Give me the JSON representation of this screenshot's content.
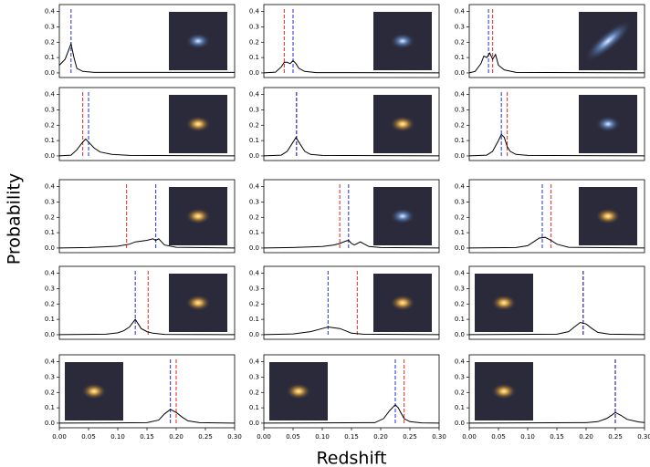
{
  "axis_labels": {
    "x": "Redshift",
    "y": "Probability"
  },
  "chart_data": [
    {
      "type": "line",
      "color": "#000000",
      "x": [
        0,
        0.01,
        0.015,
        0.02,
        0.025,
        0.03,
        0.04,
        0.06,
        0.3
      ],
      "values": [
        0.05,
        0.09,
        0.14,
        0.19,
        0.1,
        0.03,
        0.01,
        0.003,
        0.003
      ],
      "markers": [
        {
          "color": "#2633d9",
          "value": 0.02
        }
      ],
      "xlim": [
        0,
        0.3
      ],
      "ylim": [
        -0.03,
        0.445
      ],
      "yticks": [
        {
          "value": 0,
          "label": "0.0"
        },
        0.1,
        0.2,
        0.3,
        0.4
      ]
    },
    {
      "type": "line",
      "color": "#000000",
      "x": [
        0,
        0.02,
        0.03,
        0.035,
        0.04,
        0.045,
        0.05,
        0.055,
        0.06,
        0.07,
        0.09,
        0.3
      ],
      "values": [
        0,
        0.005,
        0.04,
        0.07,
        0.07,
        0.06,
        0.08,
        0.06,
        0.03,
        0.01,
        0.002,
        0
      ],
      "markers": [
        {
          "color": "#e8262a",
          "value": 0.035
        },
        {
          "color": "#2633d9",
          "value": 0.05
        }
      ],
      "xlim": [
        0,
        0.3
      ],
      "ylim": [
        -0.03,
        0.445
      ],
      "yticks": [
        {
          "value": 0,
          "label": "0.0"
        },
        0.1,
        0.2,
        0.3,
        0.4
      ]
    },
    {
      "type": "line",
      "color": "#000000",
      "x": [
        0,
        0.01,
        0.02,
        0.025,
        0.03,
        0.035,
        0.04,
        0.045,
        0.05,
        0.06,
        0.08,
        0.3
      ],
      "values": [
        0,
        0.01,
        0.06,
        0.11,
        0.1,
        0.13,
        0.09,
        0.12,
        0.05,
        0.02,
        0.003,
        0
      ],
      "markers": [
        {
          "color": "#2633d9",
          "value": 0.033
        },
        {
          "color": "#e8262a",
          "value": 0.04
        }
      ],
      "xlim": [
        0,
        0.3
      ],
      "ylim": [
        -0.03,
        0.445
      ],
      "yticks": [
        {
          "value": 0,
          "label": "0.0"
        },
        0.1,
        0.2,
        0.3,
        0.4
      ]
    },
    {
      "type": "line",
      "color": "#000000",
      "x": [
        0,
        0.02,
        0.03,
        0.04,
        0.045,
        0.05,
        0.06,
        0.07,
        0.09,
        0.12,
        0.3
      ],
      "values": [
        0,
        0.005,
        0.04,
        0.09,
        0.11,
        0.09,
        0.05,
        0.025,
        0.01,
        0.003,
        0
      ],
      "markers": [
        {
          "color": "#e8262a",
          "value": 0.04
        },
        {
          "color": "#2633d9",
          "value": 0.05
        }
      ],
      "xlim": [
        0,
        0.3
      ],
      "ylim": [
        -0.03,
        0.445
      ],
      "yticks": [
        {
          "value": 0,
          "label": "0.0"
        },
        0.1,
        0.2,
        0.3,
        0.4
      ]
    },
    {
      "type": "line",
      "color": "#000000",
      "x": [
        0,
        0.03,
        0.04,
        0.05,
        0.055,
        0.06,
        0.07,
        0.08,
        0.1,
        0.3
      ],
      "values": [
        0,
        0.005,
        0.03,
        0.09,
        0.12,
        0.09,
        0.03,
        0.01,
        0.003,
        0
      ],
      "markers": [
        {
          "color": "#e8262a",
          "value": 0.056
        },
        {
          "color": "#2633d9",
          "value": 0.056
        }
      ],
      "xlim": [
        0,
        0.3
      ],
      "ylim": [
        -0.03,
        0.445
      ],
      "yticks": [
        {
          "value": 0,
          "label": "0.0"
        },
        0.1,
        0.2,
        0.3,
        0.4
      ]
    },
    {
      "type": "line",
      "color": "#000000",
      "x": [
        0,
        0.03,
        0.04,
        0.05,
        0.055,
        0.06,
        0.065,
        0.07,
        0.08,
        0.1,
        0.3
      ],
      "values": [
        0,
        0.005,
        0.03,
        0.1,
        0.14,
        0.12,
        0.06,
        0.03,
        0.01,
        0.003,
        0
      ],
      "markers": [
        {
          "color": "#2633d9",
          "value": 0.055
        },
        {
          "color": "#e8262a",
          "value": 0.065
        }
      ],
      "xlim": [
        0,
        0.3
      ],
      "ylim": [
        -0.03,
        0.445
      ],
      "yticks": [
        {
          "value": 0,
          "label": "0.0"
        },
        0.1,
        0.2,
        0.3,
        0.4
      ]
    },
    {
      "type": "line",
      "color": "#000000",
      "x": [
        0,
        0.05,
        0.1,
        0.12,
        0.13,
        0.14,
        0.15,
        0.16,
        0.165,
        0.17,
        0.175,
        0.18,
        0.2,
        0.3
      ],
      "values": [
        0,
        0.003,
        0.012,
        0.025,
        0.04,
        0.045,
        0.05,
        0.06,
        0.05,
        0.06,
        0.04,
        0.02,
        0.005,
        0
      ],
      "markers": [
        {
          "color": "#e8262a",
          "value": 0.115
        },
        {
          "color": "#2633d9",
          "value": 0.165
        }
      ],
      "xlim": [
        0,
        0.3
      ],
      "ylim": [
        -0.03,
        0.445
      ],
      "yticks": [
        {
          "value": 0,
          "label": "0.0"
        },
        0.1,
        0.2,
        0.3,
        0.4
      ]
    },
    {
      "type": "line",
      "color": "#000000",
      "x": [
        0,
        0.05,
        0.1,
        0.12,
        0.13,
        0.14,
        0.145,
        0.15,
        0.155,
        0.16,
        0.165,
        0.17,
        0.18,
        0.2,
        0.3
      ],
      "values": [
        0,
        0.003,
        0.01,
        0.02,
        0.03,
        0.045,
        0.05,
        0.03,
        0.02,
        0.03,
        0.04,
        0.03,
        0.01,
        0.003,
        0
      ],
      "markers": [
        {
          "color": "#e8262a",
          "value": 0.13
        },
        {
          "color": "#2633d9",
          "value": 0.145
        }
      ],
      "xlim": [
        0,
        0.3
      ],
      "ylim": [
        -0.03,
        0.445
      ],
      "yticks": [
        {
          "value": 0,
          "label": "0.0"
        },
        0.1,
        0.2,
        0.3,
        0.4
      ]
    },
    {
      "type": "line",
      "color": "#000000",
      "x": [
        0,
        0.08,
        0.1,
        0.11,
        0.12,
        0.13,
        0.14,
        0.15,
        0.17,
        0.3
      ],
      "values": [
        0,
        0.003,
        0.015,
        0.04,
        0.065,
        0.07,
        0.05,
        0.025,
        0.005,
        0
      ],
      "markers": [
        {
          "color": "#2633d9",
          "value": 0.125
        },
        {
          "color": "#e8262a",
          "value": 0.14
        }
      ],
      "xlim": [
        0,
        0.3
      ],
      "ylim": [
        -0.03,
        0.445
      ],
      "yticks": [
        {
          "value": 0,
          "label": "0.0"
        },
        0.1,
        0.2,
        0.3,
        0.4
      ]
    },
    {
      "type": "line",
      "color": "#000000",
      "x": [
        0,
        0.08,
        0.1,
        0.11,
        0.12,
        0.13,
        0.135,
        0.14,
        0.15,
        0.16,
        0.18,
        0.3
      ],
      "values": [
        0,
        0.003,
        0.012,
        0.025,
        0.05,
        0.1,
        0.07,
        0.04,
        0.02,
        0.01,
        0.002,
        0
      ],
      "markers": [
        {
          "color": "#2633d9",
          "value": 0.13
        },
        {
          "color": "#e8262a",
          "value": 0.152
        }
      ],
      "xlim": [
        0,
        0.3
      ],
      "ylim": [
        -0.03,
        0.445
      ],
      "yticks": [
        {
          "value": 0,
          "label": "0.0"
        },
        0.1,
        0.2,
        0.3,
        0.4
      ]
    },
    {
      "type": "line",
      "color": "#000000",
      "x": [
        0,
        0.05,
        0.08,
        0.1,
        0.11,
        0.12,
        0.13,
        0.14,
        0.15,
        0.17,
        0.3
      ],
      "values": [
        0,
        0.005,
        0.02,
        0.04,
        0.05,
        0.045,
        0.04,
        0.025,
        0.01,
        0.003,
        0
      ],
      "markers": [
        {
          "color": "#2633d9",
          "value": 0.11
        },
        {
          "color": "#e8262a",
          "value": 0.16
        }
      ],
      "xlim": [
        0,
        0.3
      ],
      "ylim": [
        -0.03,
        0.445
      ],
      "yticks": [
        {
          "value": 0,
          "label": "0.0"
        },
        0.1,
        0.2,
        0.3,
        0.4
      ]
    },
    {
      "type": "line",
      "color": "#000000",
      "x": [
        0,
        0.15,
        0.17,
        0.18,
        0.19,
        0.2,
        0.21,
        0.22,
        0.24,
        0.3
      ],
      "values": [
        0,
        0.003,
        0.02,
        0.05,
        0.08,
        0.07,
        0.04,
        0.015,
        0.003,
        0
      ],
      "markers": [
        {
          "color": "#e8262a",
          "value": 0.195
        },
        {
          "color": "#2633d9",
          "value": 0.195
        }
      ],
      "xlim": [
        0,
        0.3
      ],
      "ylim": [
        -0.03,
        0.445
      ],
      "yticks": [
        {
          "value": 0,
          "label": "0.0"
        },
        0.1,
        0.2,
        0.3,
        0.4
      ]
    },
    {
      "type": "line",
      "color": "#000000",
      "x": [
        0,
        0.15,
        0.17,
        0.18,
        0.19,
        0.2,
        0.21,
        0.22,
        0.24,
        0.3
      ],
      "values": [
        0,
        0.003,
        0.02,
        0.06,
        0.09,
        0.07,
        0.04,
        0.015,
        0.003,
        0
      ],
      "markers": [
        {
          "color": "#2633d9",
          "value": 0.19
        },
        {
          "color": "#e8262a",
          "value": 0.2
        }
      ],
      "xlim": [
        0,
        0.3
      ],
      "ylim": [
        -0.03,
        0.445
      ],
      "xticks": [
        {
          "value": 0,
          "label": "0.00"
        },
        {
          "value": 0.05,
          "label": "0.05"
        },
        {
          "value": 0.1,
          "label": "0.10"
        },
        {
          "value": 0.15,
          "label": "0.15"
        },
        {
          "value": 0.2,
          "label": "0.20"
        },
        {
          "value": 0.25,
          "label": "0.25"
        },
        {
          "value": 0.3,
          "label": "0.30"
        }
      ],
      "yticks": [
        {
          "value": 0,
          "label": "0.0"
        },
        0.1,
        0.2,
        0.3,
        0.4
      ]
    },
    {
      "type": "line",
      "color": "#000000",
      "x": [
        0,
        0.19,
        0.205,
        0.215,
        0.225,
        0.23,
        0.24,
        0.25,
        0.27,
        0.3
      ],
      "values": [
        0,
        0.003,
        0.03,
        0.08,
        0.12,
        0.1,
        0.03,
        0.01,
        0.002,
        0
      ],
      "markers": [
        {
          "color": "#2633d9",
          "value": 0.225
        },
        {
          "color": "#e8262a",
          "value": 0.24
        }
      ],
      "xlim": [
        0,
        0.3
      ],
      "ylim": [
        -0.03,
        0.445
      ],
      "xticks": [
        {
          "value": 0,
          "label": "0.00"
        },
        {
          "value": 0.05,
          "label": "0.05"
        },
        {
          "value": 0.1,
          "label": "0.10"
        },
        {
          "value": 0.15,
          "label": "0.15"
        },
        {
          "value": 0.2,
          "label": "0.20"
        },
        {
          "value": 0.25,
          "label": "0.25"
        },
        {
          "value": 0.3,
          "label": "0.30"
        }
      ],
      "yticks": [
        {
          "value": 0,
          "label": "0.0"
        },
        0.1,
        0.2,
        0.3,
        0.4
      ]
    },
    {
      "type": "line",
      "color": "#000000",
      "x": [
        0,
        0.2,
        0.22,
        0.235,
        0.245,
        0.25,
        0.26,
        0.27,
        0.29,
        0.3
      ],
      "values": [
        0,
        0.003,
        0.01,
        0.03,
        0.055,
        0.07,
        0.05,
        0.025,
        0.008,
        0.004
      ],
      "markers": [
        {
          "color": "#e8262a",
          "value": 0.25
        },
        {
          "color": "#2633d9",
          "value": 0.25
        }
      ],
      "xlim": [
        0,
        0.3
      ],
      "ylim": [
        -0.03,
        0.445
      ],
      "xticks": [
        {
          "value": 0,
          "label": "0.00"
        },
        {
          "value": 0.05,
          "label": "0.05"
        },
        {
          "value": 0.1,
          "label": "0.10"
        },
        {
          "value": 0.15,
          "label": "0.15"
        },
        {
          "value": 0.2,
          "label": "0.20"
        },
        {
          "value": 0.25,
          "label": "0.25"
        },
        {
          "value": 0.3,
          "label": "0.30"
        }
      ],
      "yticks": [
        {
          "value": 0,
          "label": "0.0"
        },
        0.1,
        0.2,
        0.3,
        0.4
      ]
    }
  ]
}
